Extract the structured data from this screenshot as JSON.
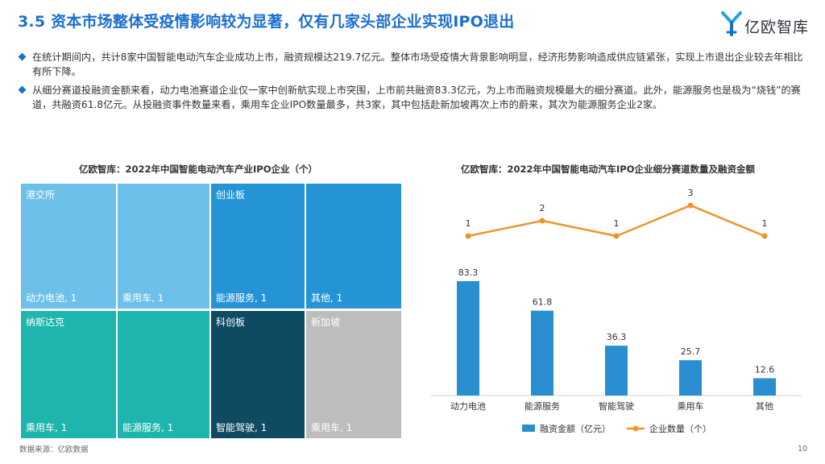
{
  "header": {
    "title": "3.5 资本市场整体受疫情影响较为显著，仅有几家头部企业实现IPO退出",
    "logo_text": "亿欧智库"
  },
  "bullets": [
    "在统计期间内，共计8家中国智能电动汽车企业成功上市，融资规模达219.7亿元。整体市场受疫情大背景影响明显，经济形势影响造成供应链紧张，实现上市退出企业较去年相比有所下降。",
    "从细分赛道投融资金额来看，动力电池赛道企业仅一家中创新航实现上市突围，上市前共融资83.3亿元，为上市而融资规模最大的细分赛道。此外，能源服务也是极为“烧钱”的赛道，共融资61.8亿元。从投融资事件数量来看，乘用车企业IPO数量最多，共3家，其中包括赴新加坡再次上市的蔚来，其次为能源服务企业2家。"
  ],
  "footer": {
    "source": "数据来源：亿欧数据",
    "page": "10"
  },
  "colors": {
    "title": "#1b6fd0",
    "hk": "#6cc0ea",
    "chinext": "#2494d6",
    "nasdaq": "#1db5ad",
    "star": "#0e4b62",
    "singapore": "#bdbdbd",
    "bar": "#2a8fd0",
    "line": "#f0942a"
  },
  "chart_data": [
    {
      "type": "treemap",
      "title": "亿欧智库：2022年中国智能电动汽车产业IPO企业（个）",
      "groups": [
        {
          "name": "港交所",
          "items": [
            {
              "label": "动力电池, 1",
              "value": 1
            },
            {
              "label": "乘用车, 1",
              "value": 1
            }
          ]
        },
        {
          "name": "创业板",
          "items": [
            {
              "label": "能源服务, 1",
              "value": 1
            },
            {
              "label": "其他, 1",
              "value": 1
            }
          ]
        },
        {
          "name": "纳斯达克",
          "items": [
            {
              "label": "乘用车, 1",
              "value": 1
            },
            {
              "label": "能源服务, 1",
              "value": 1
            }
          ]
        },
        {
          "name": "科创板",
          "items": [
            {
              "label": "智能驾驶, 1",
              "value": 1
            }
          ]
        },
        {
          "name": "新加坡",
          "items": [
            {
              "label": "乘用车, 1",
              "value": 1
            }
          ]
        }
      ]
    },
    {
      "type": "bar+line",
      "title": "亿欧智库：2022年中国智能电动汽车IPO企业细分赛道数量及融资金额",
      "categories": [
        "动力电池",
        "能源服务",
        "智能驾驶",
        "乘用车",
        "其他"
      ],
      "series": [
        {
          "name": "融资金额（亿元）",
          "type": "bar",
          "values": [
            83.3,
            61.8,
            36.3,
            25.7,
            12.6
          ]
        },
        {
          "name": "企业数量（个）",
          "type": "line",
          "values": [
            1,
            2,
            1,
            3,
            1
          ]
        }
      ],
      "legend": "bottom"
    }
  ]
}
